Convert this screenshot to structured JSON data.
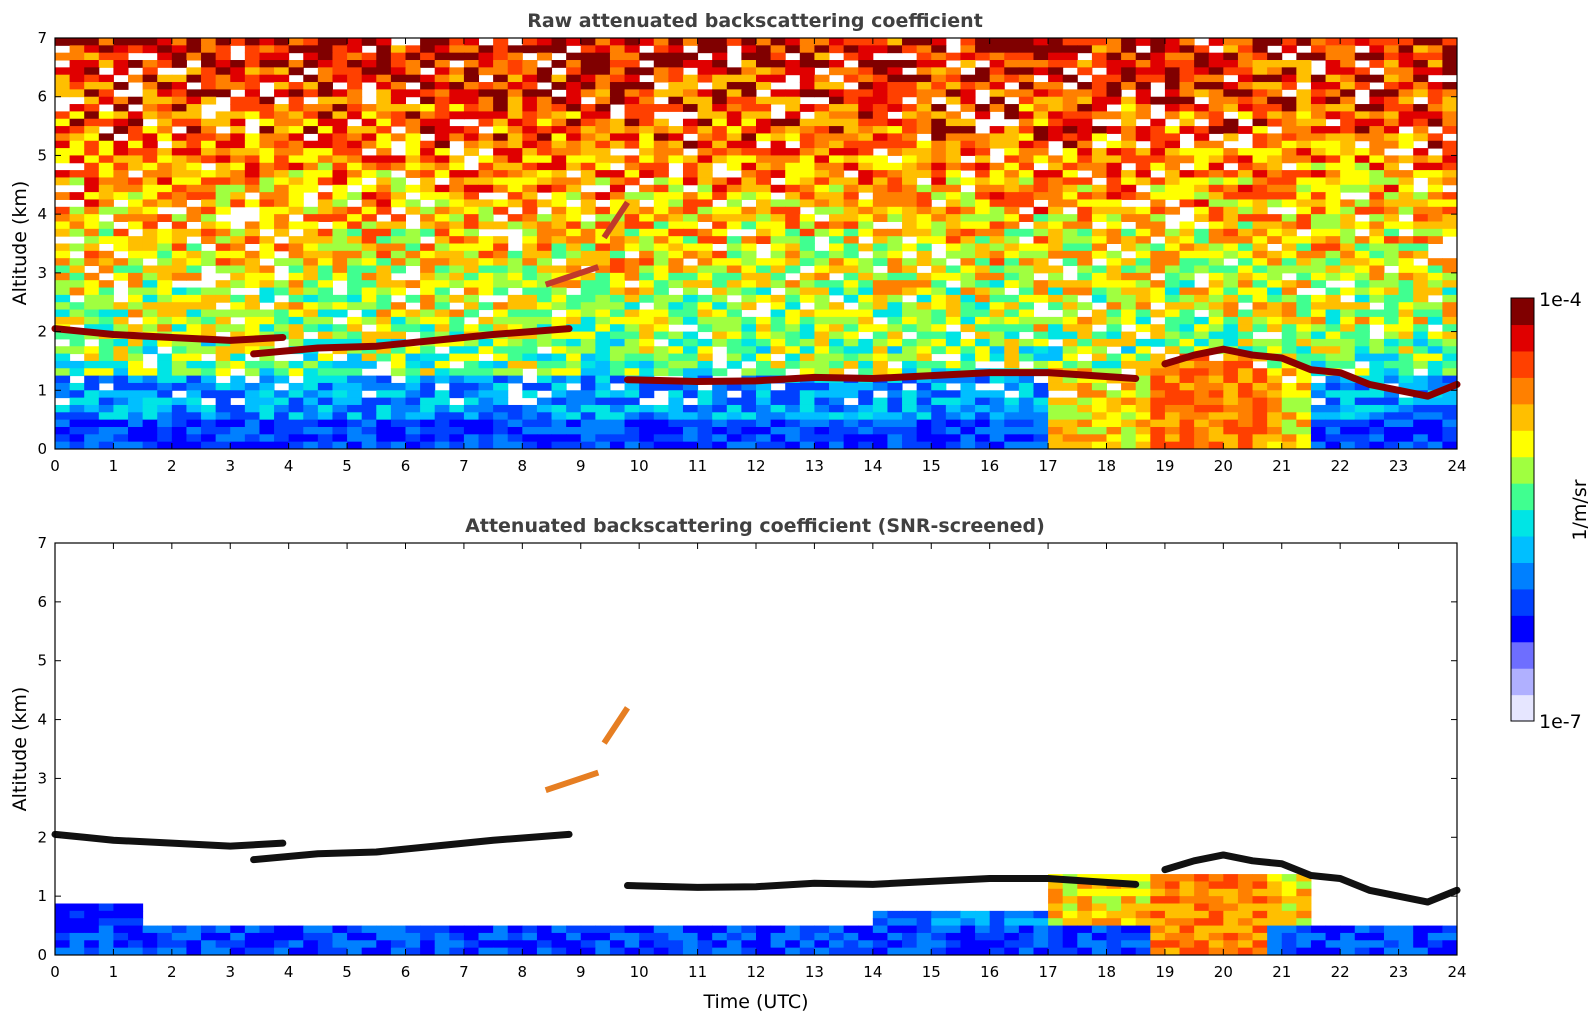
{
  "chart_data": [
    {
      "type": "heatmap",
      "title": "Raw attenuated backscattering coefficient",
      "xlabel": "",
      "ylabel": "Altitude (km)",
      "xlim": [
        0,
        24
      ],
      "ylim": [
        0,
        7
      ],
      "x_ticks": [
        "0",
        "1",
        "2",
        "3",
        "4",
        "5",
        "6",
        "7",
        "8",
        "9",
        "10",
        "11",
        "12",
        "13",
        "14",
        "15",
        "16",
        "17",
        "18",
        "19",
        "20",
        "21",
        "22",
        "23",
        "24"
      ],
      "y_ticks": [
        "0",
        "1",
        "2",
        "3",
        "4",
        "5",
        "6",
        "7"
      ],
      "colorscale": {
        "min": "1e-7",
        "max": "1e-4",
        "label": "1/m/sr",
        "log": true
      },
      "features": [
        {
          "kind": "cloud_layer",
          "x": [
            0,
            0.5,
            1.0,
            2.0,
            3.0,
            3.9
          ],
          "y": [
            2.05,
            2.0,
            1.95,
            1.9,
            1.85,
            1.9
          ]
        },
        {
          "kind": "cloud_layer",
          "x": [
            3.4,
            4.5,
            5.5,
            6.5,
            7.5,
            8.8
          ],
          "y": [
            1.62,
            1.72,
            1.75,
            1.85,
            1.95,
            2.05
          ]
        },
        {
          "kind": "cloud_layer",
          "x": [
            9.8,
            11,
            12,
            13,
            14,
            15,
            16,
            17,
            18.5
          ],
          "y": [
            1.18,
            1.15,
            1.16,
            1.22,
            1.2,
            1.25,
            1.3,
            1.3,
            1.2
          ]
        },
        {
          "kind": "cloud_layer",
          "x": [
            19,
            19.5,
            20,
            20.5,
            21,
            21.5,
            22,
            22.5,
            23,
            23.5,
            24
          ],
          "y": [
            1.45,
            1.6,
            1.7,
            1.6,
            1.55,
            1.35,
            1.3,
            1.1,
            1.0,
            0.9,
            1.1
          ]
        },
        {
          "kind": "elevated_aerosol",
          "x": [
            8.4,
            9.3
          ],
          "y": [
            2.8,
            3.1
          ]
        },
        {
          "kind": "elevated_aerosol",
          "x": [
            9.4,
            9.8
          ],
          "y": [
            3.6,
            4.2
          ]
        }
      ]
    },
    {
      "type": "heatmap",
      "title": "Attenuated backscattering coefficient (SNR-screened)",
      "xlabel": "Time (UTC)",
      "ylabel": "Altitude (km)",
      "xlim": [
        0,
        24
      ],
      "ylim": [
        0,
        7
      ],
      "x_ticks": [
        "0",
        "1",
        "2",
        "3",
        "4",
        "5",
        "6",
        "7",
        "8",
        "9",
        "10",
        "11",
        "12",
        "13",
        "14",
        "15",
        "16",
        "17",
        "18",
        "19",
        "20",
        "21",
        "22",
        "23",
        "24"
      ],
      "y_ticks": [
        "0",
        "1",
        "2",
        "3",
        "4",
        "5",
        "6",
        "7"
      ],
      "colorscale": {
        "min": "1e-7",
        "max": "1e-4",
        "label": "1/m/sr",
        "log": true
      },
      "screening": "SNR"
    }
  ],
  "colorbar": {
    "top_label": "1e-4",
    "bottom_label": "1e-7",
    "unit_label": "1/m/sr",
    "colors": [
      "#e6e6ff",
      "#b0b0ff",
      "#6e6eff",
      "#0000ff",
      "#0040ff",
      "#0080ff",
      "#00bfff",
      "#00e5e5",
      "#40ff90",
      "#a0ff40",
      "#ffff00",
      "#ffbf00",
      "#ff8000",
      "#ff4000",
      "#e00000",
      "#800000"
    ]
  }
}
